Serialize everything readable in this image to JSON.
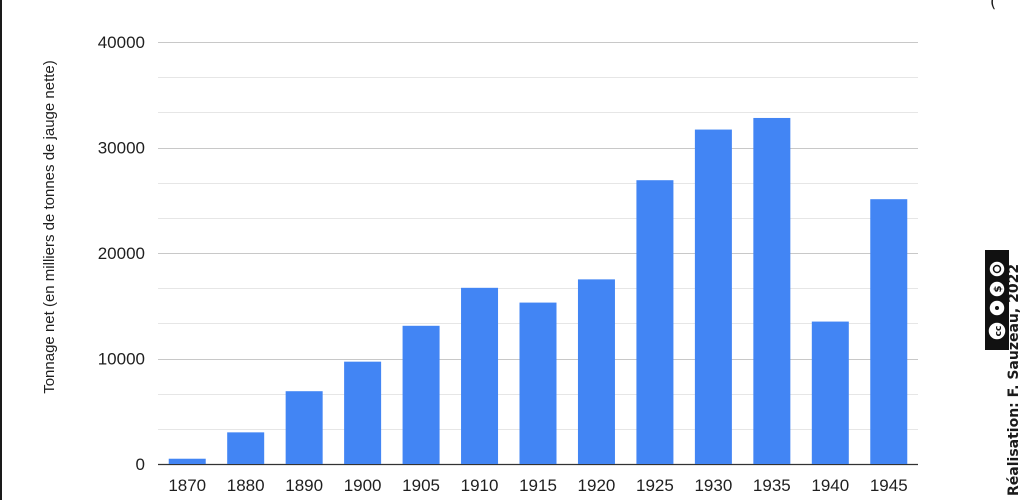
{
  "chart_data": {
    "type": "bar",
    "title": "",
    "xlabel": "",
    "ylabel": "Tonnage net  (en milliers de tonnes de jauge nette)",
    "categories": [
      "1870",
      "1880",
      "1890",
      "1900",
      "1905",
      "1910",
      "1915",
      "1920",
      "1925",
      "1930",
      "1935",
      "1940",
      "1945"
    ],
    "values": [
      500,
      3000,
      6900,
      9700,
      13100,
      16700,
      15300,
      17500,
      26900,
      31700,
      32800,
      13500,
      25100
    ],
    "ylim": [
      0,
      40000
    ],
    "yticks": [
      0,
      10000,
      20000,
      30000,
      40000
    ],
    "grid": true,
    "bar_color": "#4285f4",
    "grid_color": "#cccccc"
  },
  "credit": "Réalisation: F. Sauzeau, 2022",
  "license": {
    "icons": [
      "cc-icon",
      "by-icon",
      "nc-icon",
      "sa-icon"
    ],
    "labels": [
      "BY",
      "NC",
      "SA"
    ]
  },
  "top_glyph": "(",
  "colors": {
    "frame": "#1a1a1a",
    "text": "#1f1f1f"
  }
}
